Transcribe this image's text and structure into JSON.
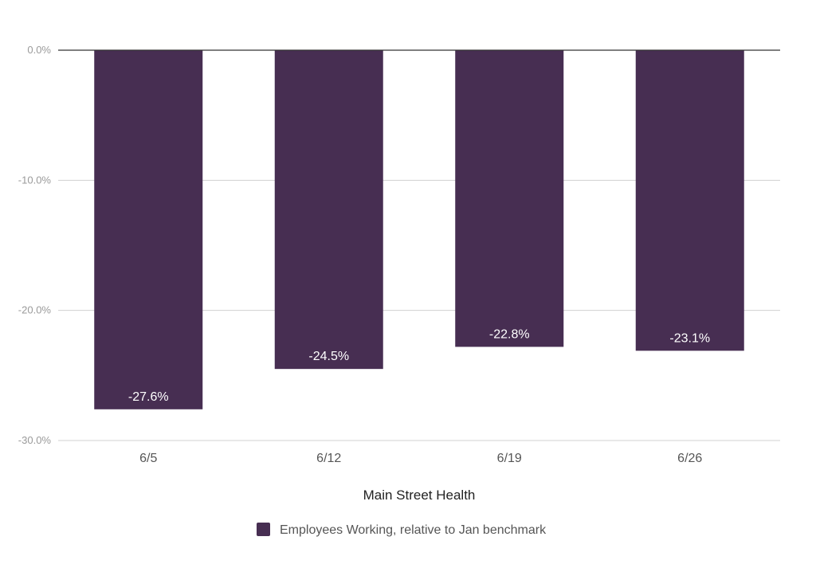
{
  "chart_data": {
    "type": "bar",
    "title": "",
    "xlabel": "Main Street Health",
    "ylabel": "",
    "categories": [
      "6/5",
      "6/12",
      "6/19",
      "6/26"
    ],
    "series": [
      {
        "name": "Employees Working, relative to Jan benchmark",
        "values": [
          -27.6,
          -24.5,
          -22.8,
          -23.1
        ],
        "labels": [
          "-27.6%",
          "-24.5%",
          "-22.8%",
          "-23.1%"
        ],
        "color": "#472e52"
      }
    ],
    "ylim": [
      -30,
      0
    ],
    "yticks": [
      0,
      -10,
      -20,
      -30
    ],
    "ytick_labels": [
      "0.0%",
      "-10.0%",
      "-20.0%",
      "-30.0%"
    ],
    "grid": true,
    "legend": "bottom-center"
  }
}
